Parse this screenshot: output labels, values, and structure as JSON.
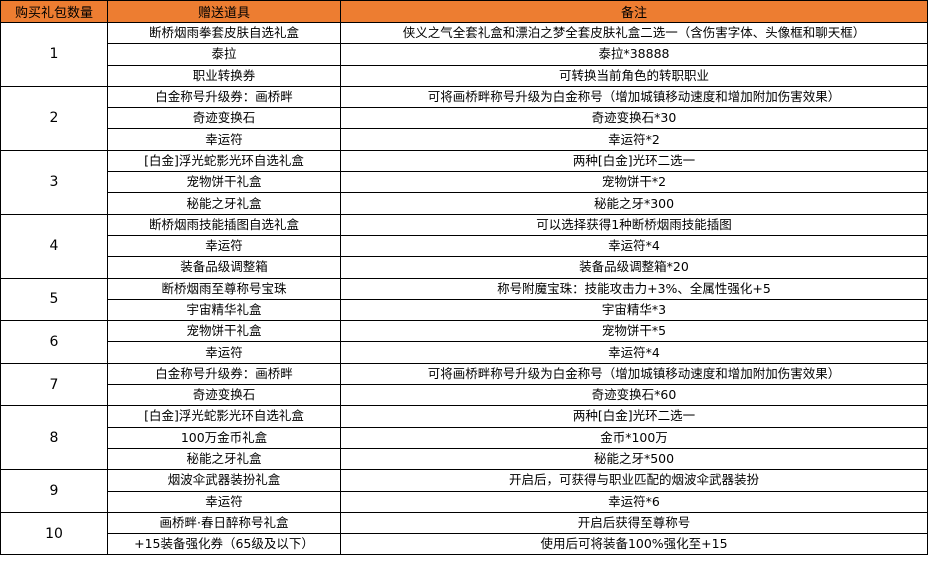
{
  "header": {
    "qty": "购买礼包数量",
    "item": "赠送道具",
    "note": "备注",
    "color": "#ed7d31"
  },
  "groups": [
    {
      "qty": "1",
      "rows": [
        {
          "item": "断桥烟雨拳套皮肤自选礼盒",
          "note": "侠义之气全套礼盒和漂泊之梦全套皮肤礼盒二选一（含伤害字体、头像框和聊天框）"
        },
        {
          "item": "泰拉",
          "note": "泰拉*38888"
        },
        {
          "item": "职业转换券",
          "note": "可转换当前角色的转职职业"
        }
      ]
    },
    {
      "qty": "2",
      "rows": [
        {
          "item": "白金称号升级券：画桥畔",
          "note": "可将画桥畔称号升级为白金称号（增加城镇移动速度和增加附加伤害效果）"
        },
        {
          "item": "奇迹变换石",
          "note": "奇迹变换石*30"
        },
        {
          "item": "幸运符",
          "note": "幸运符*2"
        }
      ]
    },
    {
      "qty": "3",
      "rows": [
        {
          "item": "[白金]浮光蛇影光环自选礼盒",
          "note": "两种[白金]光环二选一"
        },
        {
          "item": "宠物饼干礼盒",
          "note": "宠物饼干*2"
        },
        {
          "item": "秘能之牙礼盒",
          "note": "秘能之牙*300"
        }
      ]
    },
    {
      "qty": "4",
      "rows": [
        {
          "item": "断桥烟雨技能插图自选礼盒",
          "note": "可以选择获得1种断桥烟雨技能插图"
        },
        {
          "item": "幸运符",
          "note": "幸运符*4"
        },
        {
          "item": "装备品级调整箱",
          "note": "装备品级调整箱*20"
        }
      ]
    },
    {
      "qty": "5",
      "rows": [
        {
          "item": "断桥烟雨至尊称号宝珠",
          "note": "称号附魔宝珠：技能攻击力+3%、全属性强化+5"
        },
        {
          "item": "宇宙精华礼盒",
          "note": "宇宙精华*3"
        }
      ]
    },
    {
      "qty": "6",
      "rows": [
        {
          "item": "宠物饼干礼盒",
          "note": "宠物饼干*5"
        },
        {
          "item": "幸运符",
          "note": "幸运符*4"
        }
      ]
    },
    {
      "qty": "7",
      "rows": [
        {
          "item": "白金称号升级券：画桥畔",
          "note": "可将画桥畔称号升级为白金称号（增加城镇移动速度和增加附加伤害效果）"
        },
        {
          "item": "奇迹变换石",
          "note": "奇迹变换石*60"
        }
      ]
    },
    {
      "qty": "8",
      "rows": [
        {
          "item": "[白金]浮光蛇影光环自选礼盒",
          "note": "两种[白金]光环二选一"
        },
        {
          "item": "100万金币礼盒",
          "note": "金币*100万"
        },
        {
          "item": "秘能之牙礼盒",
          "note": "秘能之牙*500"
        }
      ]
    },
    {
      "qty": "9",
      "rows": [
        {
          "item": "烟波伞武器装扮礼盒",
          "note": "开启后，可获得与职业匹配的烟波伞武器装扮"
        },
        {
          "item": "幸运符",
          "note": "幸运符*6"
        }
      ]
    },
    {
      "qty": "10",
      "rows": [
        {
          "item": "画桥畔·春日醉称号礼盒",
          "note": "开启后获得至尊称号"
        },
        {
          "item": "+15装备强化券（65级及以下）",
          "note": "使用后可将装备100%强化至+15"
        }
      ]
    }
  ]
}
